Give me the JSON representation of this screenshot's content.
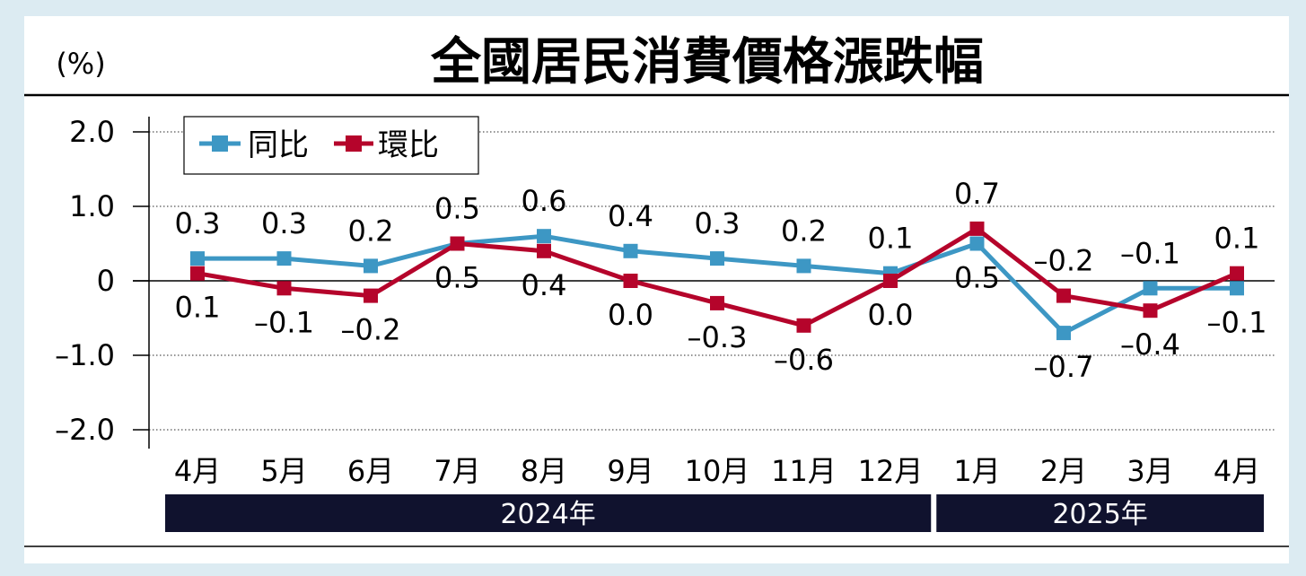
{
  "chart_data": {
    "type": "line",
    "title": "全國居民消費價格漲跌幅",
    "ylabel": "(%)",
    "ylim": [
      -2.0,
      2.0
    ],
    "y_ticks": [
      2.0,
      1.0,
      0,
      -1.0,
      -2.0
    ],
    "y_tick_labels": [
      "2.0",
      "1.0",
      "0",
      "–1.0",
      "–2.0"
    ],
    "categories": [
      "4月",
      "5月",
      "6月",
      "7月",
      "8月",
      "9月",
      "10月",
      "11月",
      "12月",
      "1月",
      "2月",
      "3月",
      "4月"
    ],
    "year_groups": [
      {
        "label": "2024年",
        "count": 9
      },
      {
        "label": "2025年",
        "count": 4
      }
    ],
    "legend_position": "top-left",
    "series": [
      {
        "name": "同比",
        "color": "#3d97c4",
        "values": [
          0.3,
          0.3,
          0.2,
          0.5,
          0.6,
          0.4,
          0.3,
          0.2,
          0.1,
          0.5,
          -0.7,
          -0.1,
          -0.1
        ],
        "labels": [
          "0.3",
          "0.3",
          "0.2",
          "0.5",
          "0.6",
          "0.4",
          "0.3",
          "0.2",
          "0.1",
          "0.5",
          "–0.7",
          "–0.1",
          "–0.1"
        ]
      },
      {
        "name": "環比",
        "color": "#b5042b",
        "values": [
          0.1,
          -0.1,
          -0.2,
          0.5,
          0.4,
          0.0,
          -0.3,
          -0.6,
          0.0,
          0.7,
          -0.2,
          -0.4,
          0.1
        ],
        "labels": [
          "0.1",
          "–0.1",
          "–0.2",
          "0.5",
          "0.4",
          "0.0",
          "–0.3",
          "–0.6",
          "0.0",
          "0.7",
          "–0.2",
          "–0.4",
          "0.1"
        ]
      }
    ]
  },
  "colors": {
    "panel": "#ffffff",
    "band": "#10122e",
    "band_text": "#ffffff",
    "axis": "#000000",
    "grid": "#555555"
  }
}
